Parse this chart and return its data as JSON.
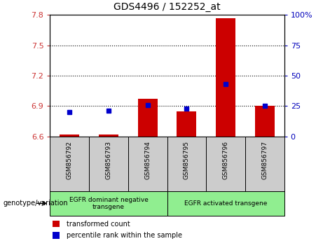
{
  "title": "GDS4496 / 152252_at",
  "samples": [
    "GSM856792",
    "GSM856793",
    "GSM856794",
    "GSM856795",
    "GSM856796",
    "GSM856797"
  ],
  "transformed_counts": [
    6.62,
    6.62,
    6.97,
    6.85,
    7.77,
    6.9
  ],
  "percentile_ranks": [
    20,
    21,
    26,
    23,
    43,
    25
  ],
  "ylim_left": [
    6.6,
    7.8
  ],
  "ylim_right": [
    0,
    100
  ],
  "yticks_left": [
    6.6,
    6.9,
    7.2,
    7.5,
    7.8
  ],
  "yticks_right": [
    0,
    25,
    50,
    75,
    100
  ],
  "group_defs": [
    {
      "start": 0,
      "end": 2,
      "label": "EGFR dominant negative\ntransgene"
    },
    {
      "start": 3,
      "end": 5,
      "label": "EGFR activated transgene"
    }
  ],
  "group_color": "#90EE90",
  "bar_color": "#CC0000",
  "dot_color": "#0000CC",
  "left_tick_color": "#CC3333",
  "right_tick_color": "#0000BB",
  "gray_color": "#CCCCCC",
  "legend_items": [
    "transformed count",
    "percentile rank within the sample"
  ]
}
